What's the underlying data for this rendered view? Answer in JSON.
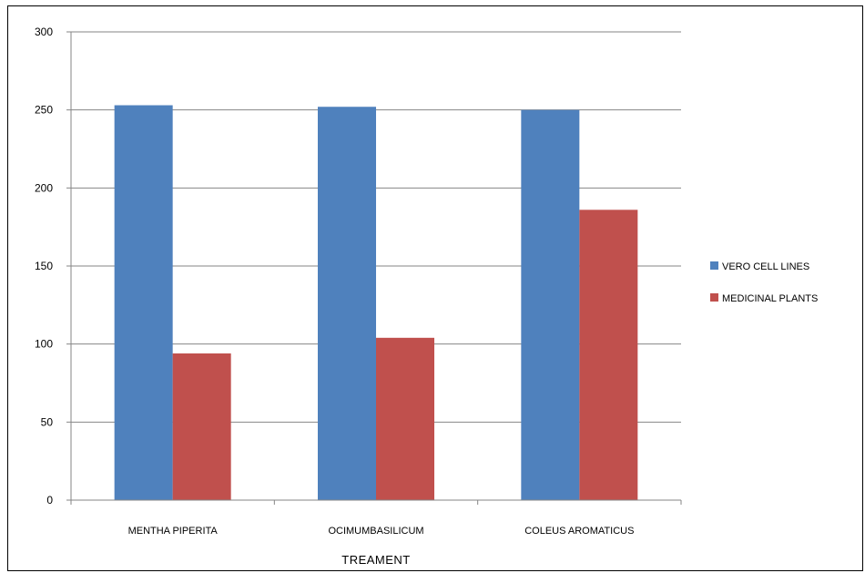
{
  "chart_data": {
    "type": "bar",
    "categories": [
      "MENTHA PIPERITA",
      "OCIMUMBASILICUM",
      "COLEUS AROMATICUS"
    ],
    "series": [
      {
        "name": "VERO CELL LINES",
        "values": [
          253,
          252,
          250
        ],
        "color": "#4f81bd"
      },
      {
        "name": "MEDICINAL PLANTS",
        "values": [
          94,
          104,
          186
        ],
        "color": "#c0504d"
      }
    ],
    "xlabel": "TREAMENT",
    "ylabel": "",
    "ylim": [
      0,
      300
    ],
    "yticks": [
      0,
      50,
      100,
      150,
      200,
      250,
      300
    ],
    "grid": true,
    "legend": "right"
  }
}
